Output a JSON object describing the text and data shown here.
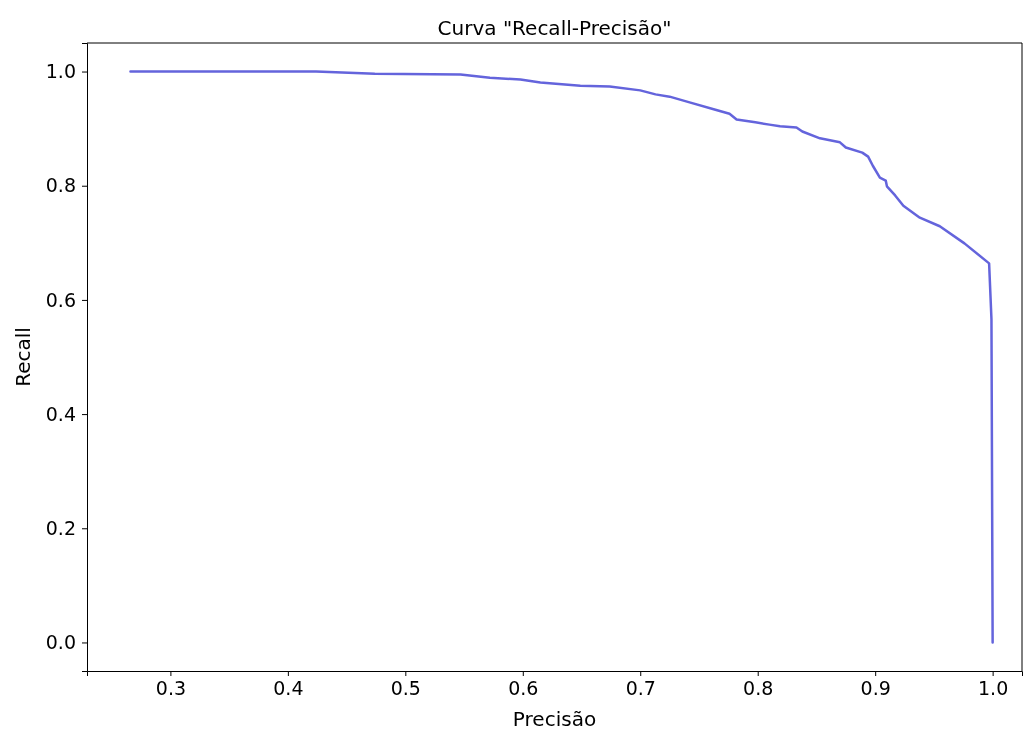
{
  "chart_data": {
    "type": "line",
    "title": "Curva \"Recall-Precisão\"",
    "xlabel": "Precisão",
    "ylabel": "Recall",
    "xlim": [
      0.229,
      1.025
    ],
    "ylim": [
      -0.05,
      1.05
    ],
    "xticks": [
      0.3,
      0.4,
      0.5,
      0.6,
      0.7,
      0.8,
      0.9,
      {
        "value": 1.0,
        "label": "1.0"
      }
    ],
    "yticks": [
      {
        "value": 0,
        "label": "0.0"
      },
      0.2,
      0.4,
      0.6,
      0.8,
      {
        "value": 1,
        "label": "1.0"
      }
    ],
    "grid": false,
    "marker": "none",
    "line_style": "solid",
    "series": [
      {
        "color": "#6464dc",
        "x": [
          0.266,
          0.424,
          0.474,
          0.547,
          0.572,
          0.598,
          0.615,
          0.649,
          0.674,
          0.7,
          0.713,
          0.725,
          0.742,
          0.764,
          0.776,
          0.782,
          0.798,
          0.81,
          0.819,
          0.833,
          0.838,
          0.853,
          0.87,
          0.875,
          0.889,
          0.894,
          0.898,
          0.904,
          0.909,
          0.91,
          0.917,
          0.924,
          0.938,
          0.955,
          0.976,
          0.997,
          0.999,
          1.0
        ],
        "values": [
          1.0,
          1.0,
          0.996,
          0.995,
          0.989,
          0.986,
          0.981,
          0.975,
          0.974,
          0.967,
          0.96,
          0.956,
          0.946,
          0.933,
          0.926,
          0.916,
          0.911,
          0.907,
          0.904,
          0.902,
          0.895,
          0.883,
          0.876,
          0.867,
          0.858,
          0.851,
          0.835,
          0.814,
          0.809,
          0.799,
          0.783,
          0.765,
          0.744,
          0.729,
          0.699,
          0.664,
          0.566,
          0.0
        ]
      }
    ]
  }
}
